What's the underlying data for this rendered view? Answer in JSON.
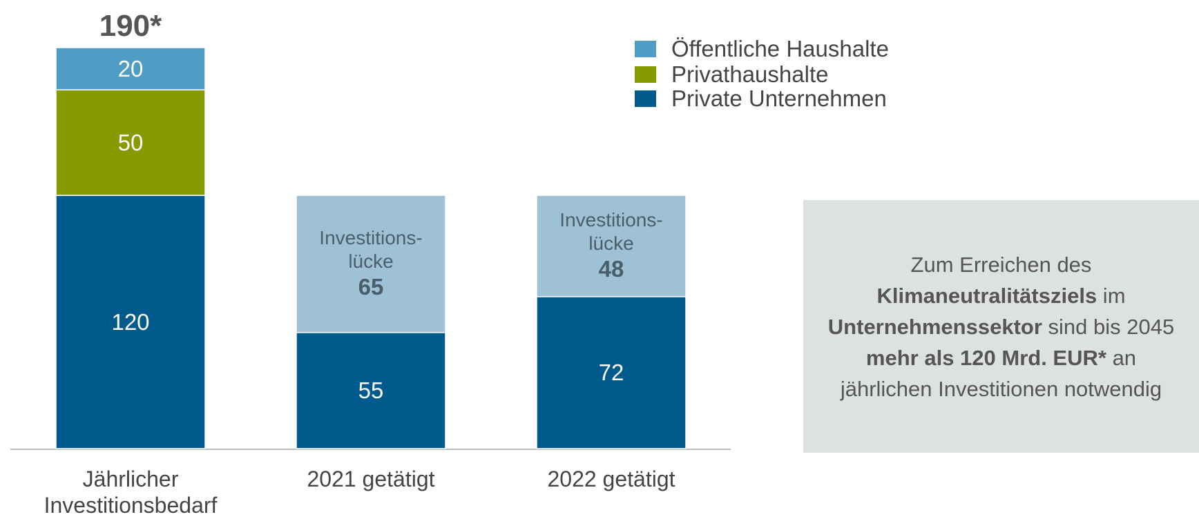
{
  "chart_data": {
    "type": "stacked_bar",
    "categories": [
      "Jährlicher\nInvestitionsbedarf",
      "2021 getätigt",
      "2022 getätigt"
    ],
    "series": [
      {
        "name": "Private Unternehmen",
        "color": "#005a8c",
        "values": [
          120,
          55,
          72
        ]
      },
      {
        "name": "Privathaushalte",
        "color": "#879a00",
        "values": [
          50,
          null,
          null
        ]
      },
      {
        "name": "Öffentliche Haushalte",
        "color": "#4f9cc4",
        "values": [
          20,
          null,
          null
        ]
      }
    ],
    "gap": {
      "label": "Investitions-\nlücke",
      "color": "#9fc1d6",
      "values": [
        null,
        65,
        48
      ]
    },
    "total": {
      "value": 190,
      "label": "190*"
    },
    "note": [
      {
        "text": "Zum Erreichen des ",
        "bold": false
      },
      {
        "text": "Klimaneutralitätsziels",
        "bold": true
      },
      {
        "text": " im ",
        "bold": false
      },
      {
        "text": "Unternehmenssektor",
        "bold": true
      },
      {
        "text": " sind bis 2045 ",
        "bold": false
      },
      {
        "text": "mehr als 120 Mrd. EUR*",
        "bold": true
      },
      {
        "text": " an jährlichen Investitionen notwendig",
        "bold": false
      }
    ]
  }
}
